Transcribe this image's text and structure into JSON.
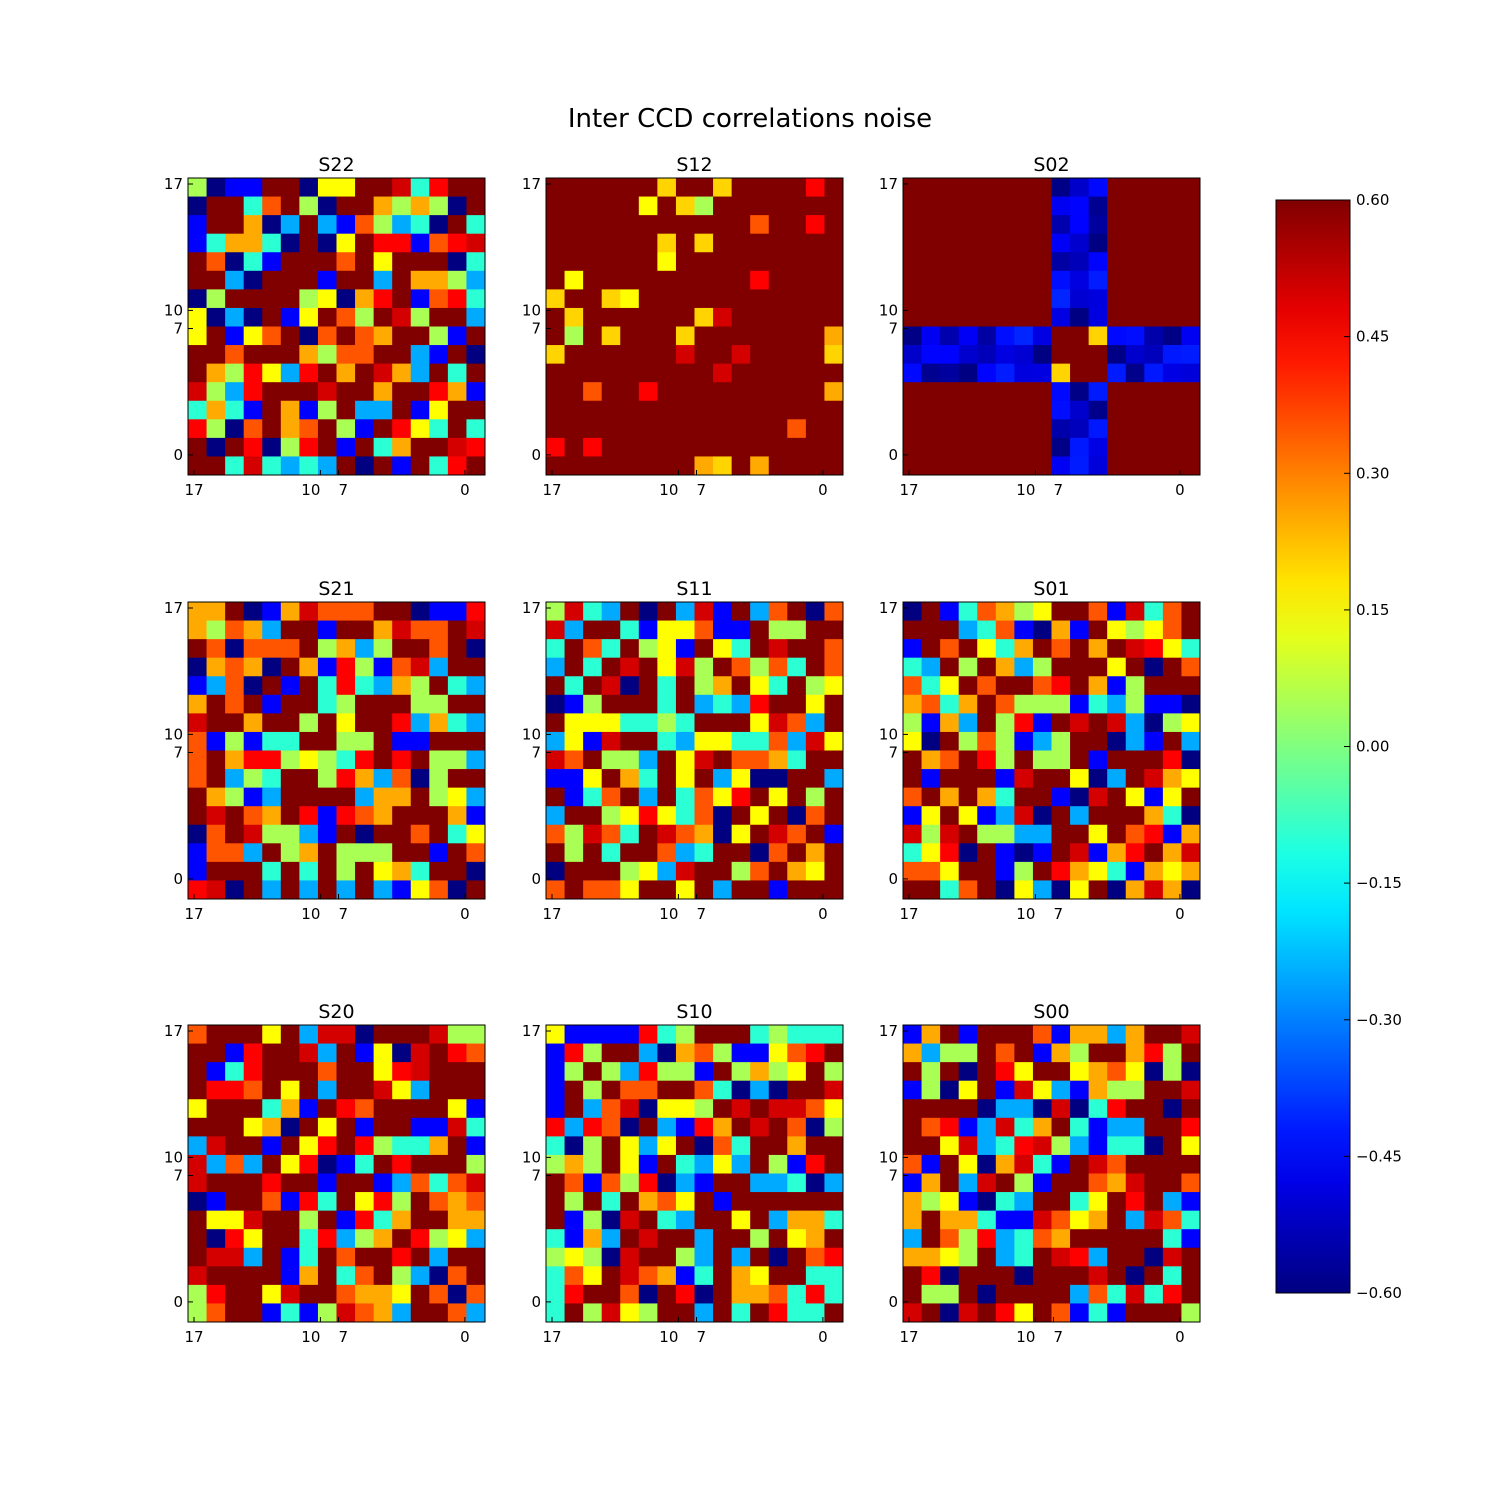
{
  "chart_data": {
    "type": "heatmap",
    "title": "Inter CCD correlations noise",
    "colormap": "jet",
    "vmin": -0.6,
    "vmax": 0.6,
    "grid_size": 16,
    "colorbar": {
      "ticks": [
        "0.60",
        "0.45",
        "0.30",
        "0.15",
        "0.00",
        "−0.15",
        "−0.30",
        "−0.45",
        "−0.60"
      ],
      "tick_values": [
        0.6,
        0.45,
        0.3,
        0.15,
        0.0,
        -0.15,
        -0.3,
        -0.45,
        -0.6
      ],
      "placement": "right"
    },
    "xticks": [
      "17",
      "10",
      "7",
      "0"
    ],
    "yticks": [
      "17",
      "10",
      "7",
      "0"
    ],
    "panels": [
      {
        "name": "S22",
        "seed": 22,
        "pattern": "noise"
      },
      {
        "name": "S12",
        "seed": 12,
        "pattern": "mostly-high"
      },
      {
        "name": "S02",
        "seed": 2,
        "pattern": "cross"
      },
      {
        "name": "S21",
        "seed": 21,
        "pattern": "noise"
      },
      {
        "name": "S11",
        "seed": 11,
        "pattern": "noise"
      },
      {
        "name": "S01",
        "seed": 1,
        "pattern": "noise"
      },
      {
        "name": "S20",
        "seed": 20,
        "pattern": "noise"
      },
      {
        "name": "S10",
        "seed": 10,
        "pattern": "noise"
      },
      {
        "name": "S00",
        "seed": 0,
        "pattern": "noise"
      }
    ]
  }
}
